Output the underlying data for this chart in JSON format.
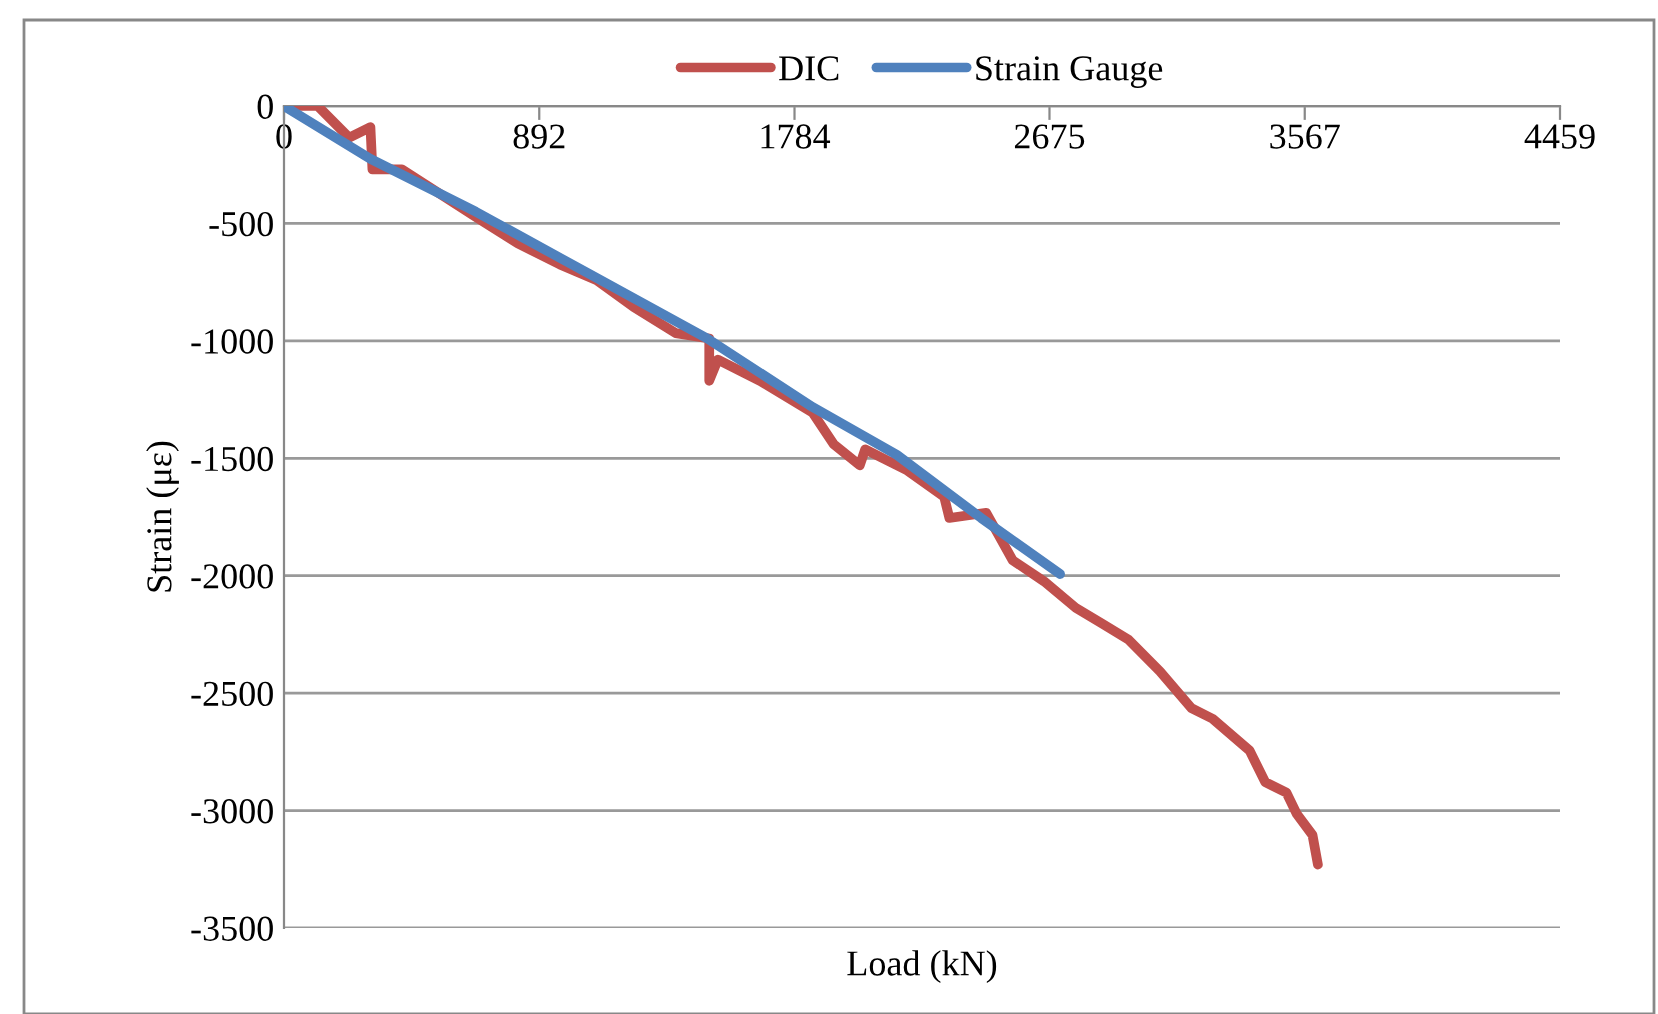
{
  "chart_data": {
    "type": "line",
    "xlabel": "Load (kN)",
    "ylabel": "Strain (με)",
    "xlim": [
      0,
      4459
    ],
    "xticks": [
      0,
      892,
      1784,
      2675,
      3567,
      4459
    ],
    "ylim": [
      -3500,
      0
    ],
    "yticks": [
      -3500,
      -3000,
      -2500,
      -2000,
      -1500,
      -1000,
      -500,
      0
    ],
    "grid": "y",
    "legend": "top",
    "marker": "none",
    "line_style": "solid",
    "series": [
      {
        "name": "DIC",
        "color": "#c0504d",
        "x": [
          0,
          118,
          228,
          302,
          309,
          412,
          670,
          817,
          964,
          1093,
          1221,
          1369,
          1486,
          1486,
          1516,
          1663,
          1847,
          1921,
          2012,
          2031,
          2178,
          2307,
          2325,
          2454,
          2546,
          2656,
          2767,
          2859,
          2951,
          3061,
          3171,
          3245,
          3374,
          3429,
          3503,
          3539,
          3594,
          3613
        ],
        "values": [
          0,
          0,
          -135,
          -90,
          -270,
          -270,
          -472,
          -585,
          -675,
          -742,
          -855,
          -967,
          -990,
          -1170,
          -1080,
          -1170,
          -1305,
          -1440,
          -1530,
          -1462,
          -1552,
          -1664,
          -1754,
          -1732,
          -1934,
          -2024,
          -2137,
          -2204,
          -2272,
          -2407,
          -2564,
          -2609,
          -2744,
          -2879,
          -2924,
          -3014,
          -3104,
          -3230
        ]
      },
      {
        "name": "Strain Gauge",
        "color": "#4f81bd",
        "x": [
          0,
          302,
          670,
          1074,
          1479,
          1847,
          2141,
          2436,
          2712
        ],
        "values": [
          0,
          -225,
          -450,
          -720,
          -990,
          -1282,
          -1485,
          -1754,
          -1993
        ]
      }
    ]
  }
}
